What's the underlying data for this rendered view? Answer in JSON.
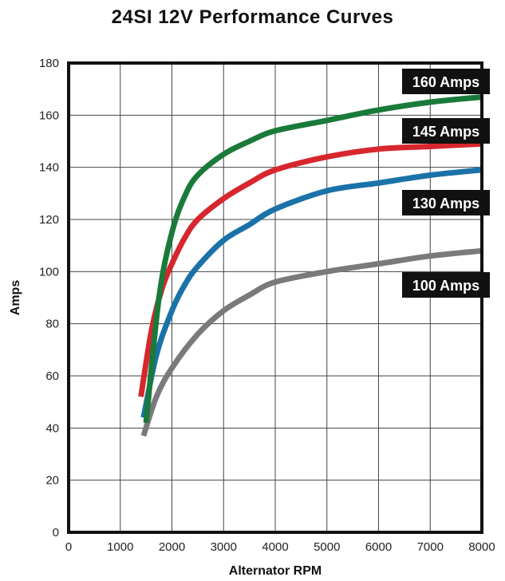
{
  "chart_data": {
    "type": "line",
    "title": "24SI 12V Performance Curves",
    "xlabel": "Alternator RPM",
    "ylabel": "Amps",
    "xlim": [
      0,
      8000
    ],
    "ylim": [
      0,
      180
    ],
    "xticks": [
      0,
      1000,
      2000,
      3000,
      4000,
      5000,
      6000,
      7000,
      8000
    ],
    "yticks": [
      0,
      20,
      40,
      60,
      80,
      100,
      120,
      140,
      160,
      180
    ],
    "grid": true,
    "legend_placement": "right, at curve ends",
    "series": [
      {
        "name": "160 Amps",
        "color": "#1a7a3a",
        "points": [
          [
            1500,
            42
          ],
          [
            1750,
            90
          ],
          [
            2000,
            115
          ],
          [
            2250,
            129
          ],
          [
            2500,
            137
          ],
          [
            3000,
            145
          ],
          [
            3500,
            150
          ],
          [
            4000,
            154
          ],
          [
            5000,
            158
          ],
          [
            6000,
            162
          ],
          [
            7000,
            165
          ],
          [
            8000,
            167
          ]
        ]
      },
      {
        "name": "145 Amps",
        "color": "#d7262d",
        "points": [
          [
            1400,
            52
          ],
          [
            1600,
            77
          ],
          [
            1800,
            93
          ],
          [
            2000,
            103
          ],
          [
            2250,
            113
          ],
          [
            2500,
            120
          ],
          [
            3000,
            128
          ],
          [
            3500,
            134
          ],
          [
            4000,
            139
          ],
          [
            5000,
            144
          ],
          [
            6000,
            147
          ],
          [
            7000,
            148
          ],
          [
            8000,
            149
          ]
        ]
      },
      {
        "name": "130 Amps",
        "color": "#1a72a8",
        "points": [
          [
            1450,
            44
          ],
          [
            1700,
            68
          ],
          [
            2000,
            85
          ],
          [
            2250,
            95
          ],
          [
            2500,
            102
          ],
          [
            3000,
            112
          ],
          [
            3500,
            118
          ],
          [
            4000,
            124
          ],
          [
            5000,
            131
          ],
          [
            6000,
            134
          ],
          [
            7000,
            137
          ],
          [
            8000,
            139
          ]
        ]
      },
      {
        "name": "100 Amps",
        "color": "#7a7a7c",
        "points": [
          [
            1450,
            37
          ],
          [
            1700,
            52
          ],
          [
            2000,
            63
          ],
          [
            2500,
            76
          ],
          [
            3000,
            85
          ],
          [
            3500,
            91
          ],
          [
            4000,
            96
          ],
          [
            5000,
            100
          ],
          [
            6000,
            103
          ],
          [
            7000,
            106
          ],
          [
            8000,
            108
          ]
        ]
      }
    ]
  }
}
